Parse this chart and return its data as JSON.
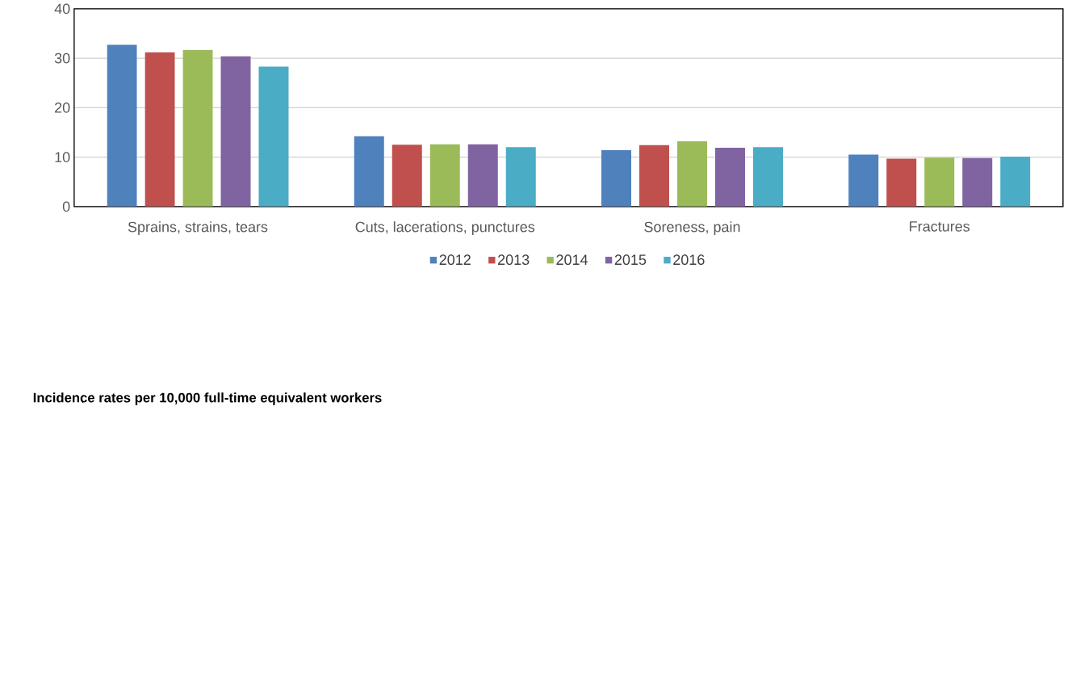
{
  "chart_data": {
    "type": "bar",
    "title": "Incidence rates per 10,000 full-time equivalent workers",
    "categories": [
      "Sprains, strains, tears",
      "Cuts, lacerations, punctures",
      "Soreness, pain",
      "Fractures"
    ],
    "series": [
      {
        "name": "2012",
        "color": "#4f81bd",
        "values": [
          32.7,
          14.2,
          11.4,
          10.5
        ]
      },
      {
        "name": "2013",
        "color": "#c0504d",
        "values": [
          31.2,
          12.5,
          12.4,
          9.7
        ]
      },
      {
        "name": "2014",
        "color": "#9bbb59",
        "values": [
          31.7,
          12.6,
          13.2,
          9.9
        ]
      },
      {
        "name": "2015",
        "color": "#8064a2",
        "values": [
          30.4,
          12.6,
          11.9,
          9.8
        ]
      },
      {
        "name": "2016",
        "color": "#4bacc6",
        "values": [
          28.3,
          12.0,
          12.0,
          10.1
        ]
      }
    ],
    "ylim": [
      0,
      40
    ],
    "yticks": [
      0,
      10,
      20,
      30,
      40
    ],
    "grid": "y",
    "legend": "bottom"
  }
}
